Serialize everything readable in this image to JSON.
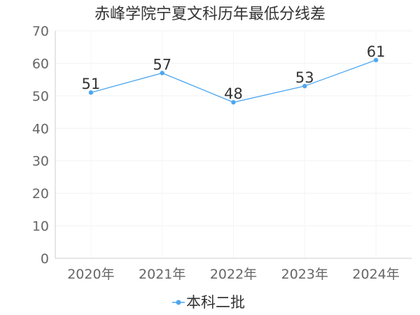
{
  "chart_data": {
    "type": "line",
    "title": "赤峰学院宁夏文科历年最低分线差",
    "categories": [
      "2020年",
      "2021年",
      "2022年",
      "2023年",
      "2024年"
    ],
    "series": [
      {
        "name": "本科二批",
        "values": [
          51,
          57,
          48,
          53,
          61
        ],
        "color": "#4da6f0"
      }
    ],
    "ylim": [
      0,
      70
    ],
    "yticks": [
      0,
      10,
      20,
      30,
      40,
      50,
      60,
      70
    ],
    "grid": true,
    "legend_position": "bottom"
  }
}
